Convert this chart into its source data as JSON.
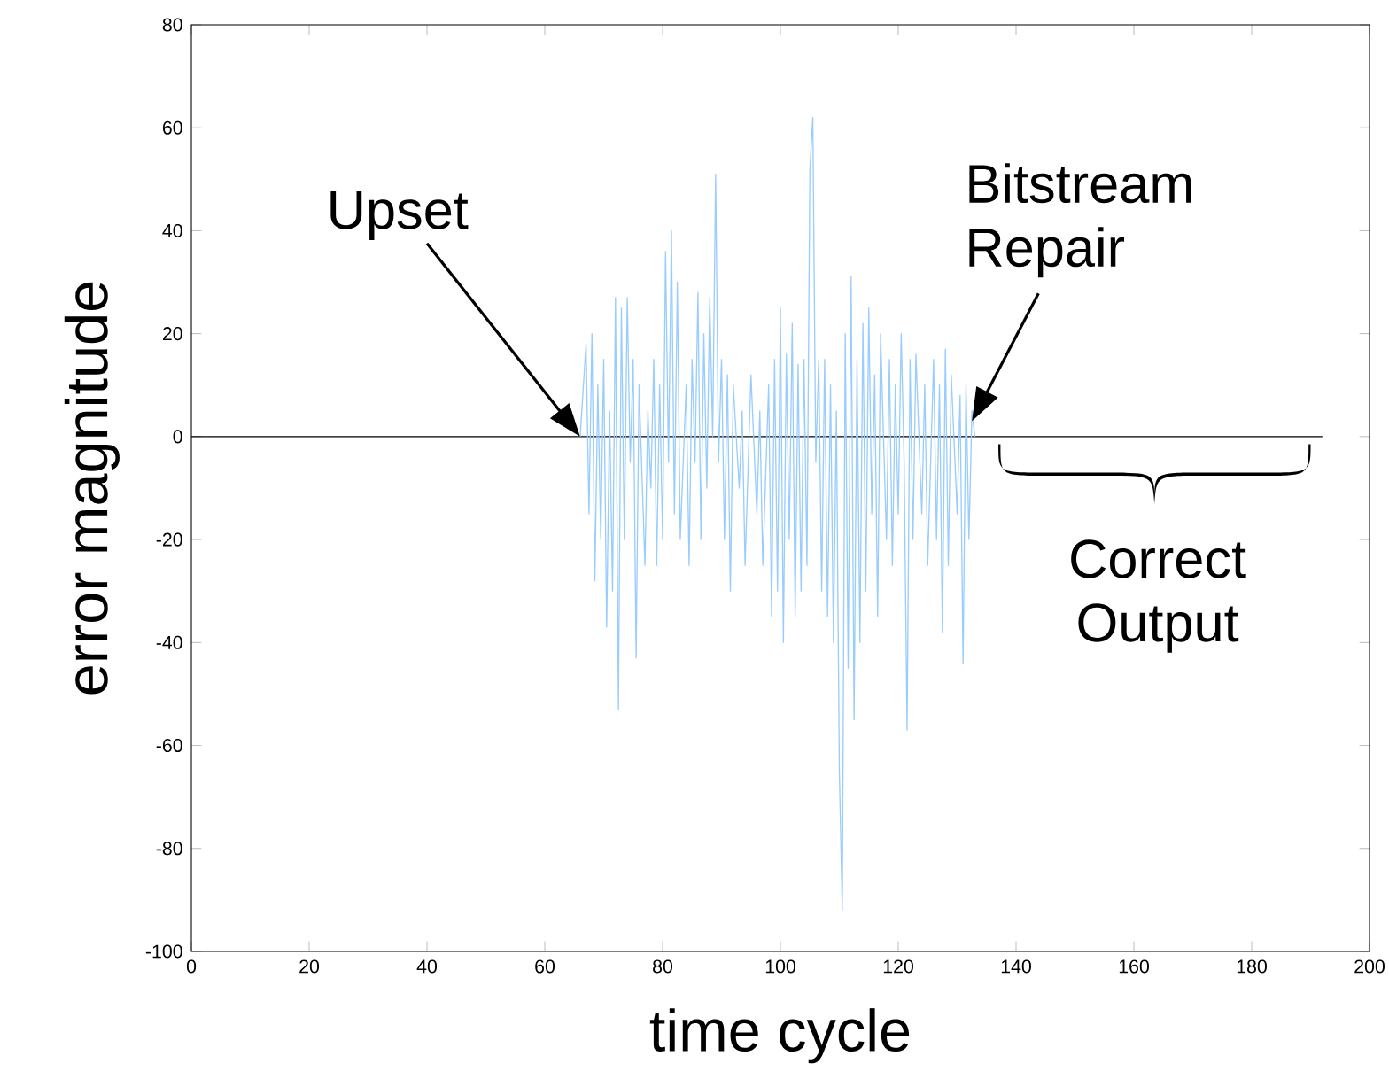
{
  "chart_data": {
    "type": "line",
    "xlabel": "time cycle",
    "ylabel": "error magnitude",
    "xlim": [
      0,
      200
    ],
    "ylim": [
      -100,
      80
    ],
    "xticks": [
      0,
      20,
      40,
      60,
      80,
      100,
      120,
      140,
      160,
      180,
      200
    ],
    "yticks": [
      -100,
      -80,
      -60,
      -40,
      -20,
      0,
      20,
      40,
      60,
      80
    ],
    "grid": false,
    "marker": "none",
    "line_style": "solid",
    "series": [
      {
        "color": "#000000",
        "x": [
          0,
          192
        ],
        "values": [
          0,
          0
        ]
      },
      {
        "color": "#99ccff",
        "x": [
          66,
          67,
          67.5,
          68,
          68.5,
          69,
          69.5,
          70,
          70.5,
          71,
          71.5,
          72,
          72.5,
          73,
          73.5,
          74,
          74.5,
          75,
          75.5,
          76,
          77,
          77.5,
          78,
          78.5,
          79,
          79.5,
          80,
          80.5,
          81,
          81.5,
          82,
          82.5,
          83,
          84,
          84.5,
          85,
          85.5,
          86,
          86.5,
          87,
          87.5,
          88,
          88.5,
          89,
          89.5,
          90,
          90.5,
          91,
          91.5,
          92,
          93,
          93.5,
          94,
          95,
          96,
          96.5,
          97,
          98,
          98.5,
          99,
          99.5,
          100,
          100.5,
          101,
          101.5,
          102,
          102.5,
          103,
          103.5,
          104,
          104.5,
          105,
          105.5,
          106,
          106.5,
          107,
          107.5,
          108,
          108.5,
          109,
          109.5,
          110,
          110.5,
          111,
          111.5,
          112,
          112.5,
          113,
          113.5,
          114,
          114.5,
          115,
          115.5,
          116,
          116.5,
          117,
          118,
          118.5,
          119,
          119.5,
          120,
          120.5,
          121,
          121.5,
          122,
          122.5,
          123,
          124,
          124.5,
          125,
          126,
          126.5,
          127,
          127.5,
          128,
          128.5,
          129,
          130,
          130.5,
          131,
          131.5,
          132,
          132.5,
          133
        ],
        "values": [
          0,
          18,
          -15,
          20,
          -28,
          10,
          -20,
          15,
          -37,
          5,
          -30,
          27,
          -53,
          25,
          -20,
          27,
          -5,
          15,
          -43,
          10,
          -25,
          5,
          -10,
          15,
          -25,
          10,
          -20,
          36,
          -5,
          40,
          -15,
          30,
          -20,
          10,
          -25,
          15,
          -5,
          28,
          -20,
          20,
          -10,
          27,
          0,
          51,
          -5,
          15,
          -20,
          12,
          -30,
          10,
          -10,
          5,
          -25,
          12,
          -15,
          5,
          -25,
          10,
          -35,
          15,
          -30,
          25,
          -40,
          16,
          -20,
          22,
          -35,
          14,
          -30,
          15,
          -25,
          52,
          62,
          -5,
          15,
          -30,
          15,
          -35,
          10,
          -40,
          5,
          -65,
          -92,
          20,
          -45,
          31,
          -55,
          15,
          -40,
          22,
          -30,
          25,
          -15,
          12,
          -35,
          20,
          -20,
          15,
          -25,
          10,
          -15,
          20,
          -5,
          -57,
          15,
          -20,
          16,
          -15,
          10,
          -25,
          15,
          -20,
          10,
          -38,
          17,
          -25,
          12,
          -15,
          8,
          -44,
          10,
          -20,
          5,
          0
        ]
      }
    ],
    "annotations": [
      "Upset",
      {
        "text": "Bitstream Repair",
        "x": 132.5,
        "y": 3
      },
      {
        "text": "Correct Output",
        "x": 163.5,
        "y": 0
      }
    ]
  }
}
